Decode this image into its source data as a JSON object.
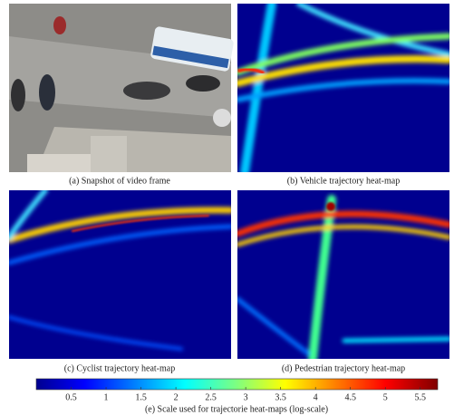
{
  "panels": [
    {
      "caption": "(a) Snapshot of video frame"
    },
    {
      "caption": "(b) Vehicle trajectory heat-map"
    },
    {
      "caption": "(c) Cyclist trajectory heat-map"
    },
    {
      "caption": "(d) Pedestrian trajectory heat-map"
    }
  ],
  "colorbar": {
    "range": [
      0,
      5.75
    ],
    "ticks": [
      0.5,
      1,
      1.5,
      2,
      2.5,
      3,
      3.5,
      4,
      4.5,
      5,
      5.5
    ],
    "caption": "(e) Scale used for trajectorie heat-maps (log-scale)"
  }
}
